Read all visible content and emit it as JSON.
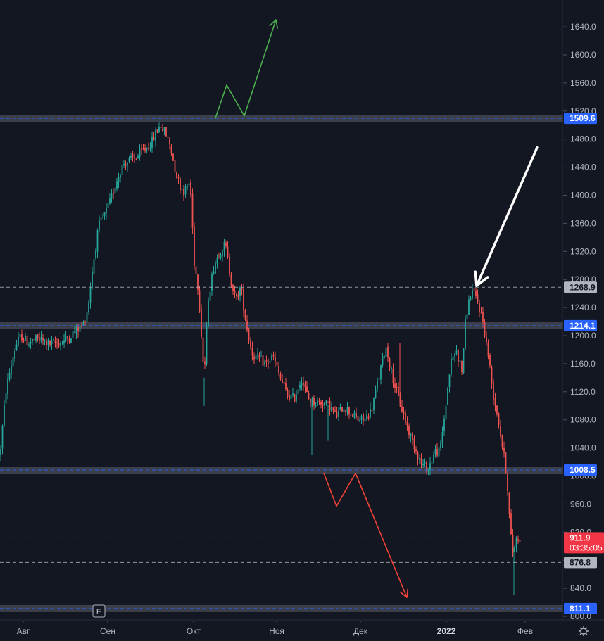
{
  "chart_data": {
    "type": "candlestick",
    "y_ticks": [
      800,
      840,
      880,
      920,
      960,
      1000,
      1040,
      1080,
      1120,
      1160,
      1200,
      1240,
      1280,
      1320,
      1360,
      1400,
      1440,
      1480,
      1520,
      1560,
      1600,
      1640
    ],
    "y_tick_labels": [
      "800.0",
      "840.0",
      "880.0",
      "920.0",
      "960.0",
      "1000.0",
      "1040.0",
      "1080.0",
      "1120.0",
      "1160.0",
      "1200.0",
      "1240.0",
      "1280.0",
      "1320.0",
      "1360.0",
      "1400.0",
      "1440.0",
      "1480.0",
      "1520.0",
      "1560.0",
      "1600.0",
      "1640.0"
    ],
    "x_tick_labels": [
      "Авг",
      "Сен",
      "Окт",
      "Ноя",
      "Дек",
      "2022",
      "Фев"
    ],
    "bold_x_label": "2022",
    "levels": [
      {
        "value": 1509.6,
        "label": "1509.6",
        "kind": "zone",
        "color": "#2962ff"
      },
      {
        "value": 1268.9,
        "label": "1268.9",
        "kind": "dashed",
        "color": "#9598a1"
      },
      {
        "value": 1214.1,
        "label": "1214.1",
        "kind": "zone",
        "color": "#2962ff"
      },
      {
        "value": 1008.5,
        "label": "1008.5",
        "kind": "zone",
        "color": "#2962ff"
      },
      {
        "value": 876.8,
        "label": "876.8",
        "kind": "dashed",
        "color": "#9598a1"
      },
      {
        "value": 811.1,
        "label": "811.1",
        "kind": "zone",
        "color": "#2962ff"
      }
    ],
    "last_price": {
      "value": 911.9,
      "label": "911.9",
      "countdown": "03:35:05",
      "color": "#f23645"
    },
    "marker": "E",
    "colors": {
      "up": "#26a69a",
      "down": "#ef5350",
      "background": "#131722",
      "green_arrow": "#4caf50",
      "red_arrow": "#f44336",
      "white_arrow": "#ffffff"
    },
    "path": [
      [
        0,
        1030
      ],
      [
        8,
        1120
      ],
      [
        14,
        1150
      ],
      [
        22,
        1185
      ],
      [
        30,
        1200
      ],
      [
        40,
        1190
      ],
      [
        55,
        1196
      ],
      [
        70,
        1188
      ],
      [
        85,
        1190
      ],
      [
        95,
        1195
      ],
      [
        105,
        1205
      ],
      [
        118,
        1215
      ],
      [
        125,
        1240
      ],
      [
        132,
        1300
      ],
      [
        140,
        1355
      ],
      [
        150,
        1375
      ],
      [
        158,
        1395
      ],
      [
        165,
        1420
      ],
      [
        175,
        1445
      ],
      [
        185,
        1450
      ],
      [
        195,
        1455
      ],
      [
        205,
        1465
      ],
      [
        215,
        1475
      ],
      [
        222,
        1490
      ],
      [
        228,
        1500
      ],
      [
        235,
        1488
      ],
      [
        242,
        1470
      ],
      [
        248,
        1440
      ],
      [
        255,
        1415
      ],
      [
        262,
        1405
      ],
      [
        270,
        1420
      ],
      [
        276,
        1305
      ],
      [
        282,
        1265
      ],
      [
        290,
        1140
      ],
      [
        296,
        1255
      ],
      [
        304,
        1300
      ],
      [
        312,
        1320
      ],
      [
        320,
        1330
      ],
      [
        328,
        1280
      ],
      [
        335,
        1250
      ],
      [
        342,
        1270
      ],
      [
        350,
        1215
      ],
      [
        358,
        1175
      ],
      [
        368,
        1165
      ],
      [
        378,
        1160
      ],
      [
        388,
        1170
      ],
      [
        398,
        1140
      ],
      [
        408,
        1115
      ],
      [
        418,
        1110
      ],
      [
        428,
        1140
      ],
      [
        438,
        1110
      ],
      [
        448,
        1105
      ],
      [
        458,
        1105
      ],
      [
        468,
        1100
      ],
      [
        478,
        1085
      ],
      [
        488,
        1100
      ],
      [
        498,
        1090
      ],
      [
        508,
        1080
      ],
      [
        518,
        1080
      ],
      [
        528,
        1095
      ],
      [
        538,
        1140
      ],
      [
        548,
        1185
      ],
      [
        558,
        1140
      ],
      [
        566,
        1110
      ],
      [
        574,
        1085
      ],
      [
        582,
        1060
      ],
      [
        590,
        1040
      ],
      [
        598,
        1018
      ],
      [
        608,
        1010
      ],
      [
        618,
        1035
      ],
      [
        625,
        1035
      ],
      [
        632,
        1090
      ],
      [
        640,
        1160
      ],
      [
        648,
        1180
      ],
      [
        656,
        1150
      ],
      [
        662,
        1230
      ],
      [
        670,
        1265
      ],
      [
        678,
        1250
      ],
      [
        686,
        1220
      ],
      [
        694,
        1170
      ],
      [
        700,
        1120
      ],
      [
        708,
        1080
      ],
      [
        714,
        1040
      ],
      [
        720,
        1000
      ],
      [
        724,
        935
      ],
      [
        728,
        890
      ],
      [
        733,
        910
      ],
      [
        740,
        912
      ]
    ],
    "wicks": [
      [
        290,
        1100
      ],
      [
        443,
        1030
      ],
      [
        466,
        1050
      ],
      [
        568,
        1190
      ],
      [
        730,
        830
      ]
    ],
    "annotations": [
      {
        "type": "polyline",
        "color": "#4caf50",
        "points": [
          [
            306,
            1510
          ],
          [
            322,
            1557
          ],
          [
            347,
            1513
          ],
          [
            392,
            1650
          ]
        ],
        "arrow_end": true
      },
      {
        "type": "polyline",
        "color": "#f44336",
        "points": [
          [
            460,
            1004
          ],
          [
            478,
            957
          ],
          [
            505,
            1004
          ],
          [
            578,
            827
          ]
        ],
        "arrow_end": true
      },
      {
        "type": "line",
        "color": "#ffffff",
        "points": [
          [
            763,
            1468
          ],
          [
            677,
            1271
          ]
        ],
        "arrow_end": true
      }
    ]
  }
}
